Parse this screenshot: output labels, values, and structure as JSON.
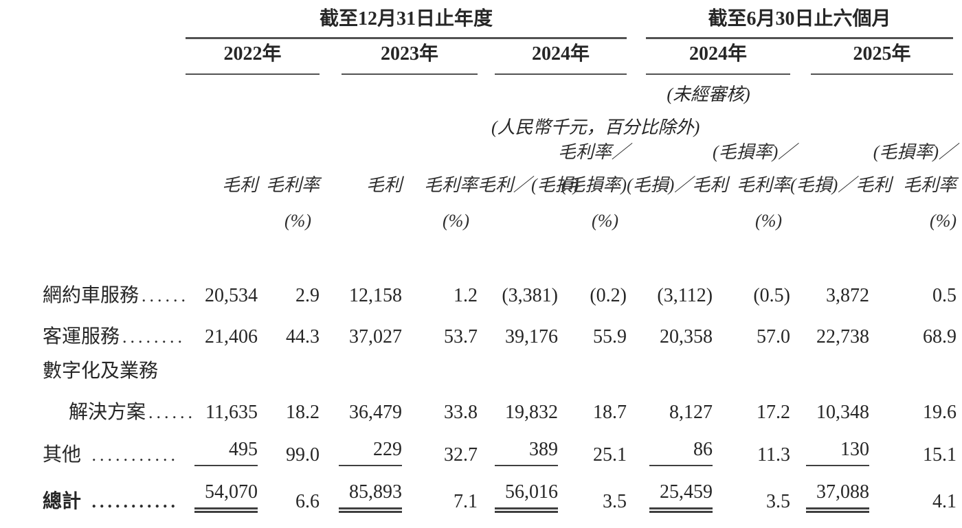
{
  "table": {
    "groups": [
      {
        "title": "截至12月31日止年度"
      },
      {
        "title": "截至6月30日止六個月"
      }
    ],
    "years": [
      {
        "label": "2022年"
      },
      {
        "label": "2023年"
      },
      {
        "label": "2024年"
      },
      {
        "label": "2024年"
      },
      {
        "label": "2025年"
      }
    ],
    "notes": {
      "unaudited": "(未經審核)",
      "unit": "(人民幣千元，百分比除外)"
    },
    "col_headers": {
      "line1_c6": "毛利率／",
      "line1_c8": "(毛損率)／",
      "line1_c10": "(毛損率)／",
      "line2": [
        "毛利",
        "毛利率",
        "毛利",
        "毛利率",
        "毛利／(毛損)",
        "(毛損率)",
        "(毛損)／毛利",
        "毛利率",
        "(毛損)／毛利",
        "毛利率"
      ],
      "pct": "(%)"
    },
    "rows": [
      {
        "label": "網約車服務",
        "leader": "......",
        "indent": false,
        "bold": false,
        "underline": "none",
        "values": [
          "20,534",
          "2.9",
          "12,158",
          "1.2",
          "(3,381)",
          "(0.2)",
          "(3,112)",
          "(0.5)",
          "3,872",
          "0.5"
        ]
      },
      {
        "label": "客運服務",
        "leader": "........",
        "indent": false,
        "bold": false,
        "underline": "none",
        "values": [
          "21,406",
          "44.3",
          "37,027",
          "53.7",
          "39,176",
          "55.9",
          "20,358",
          "57.0",
          "22,738",
          "68.9"
        ]
      },
      {
        "label": "數字化及業務",
        "leader": "",
        "indent": false,
        "bold": false,
        "underline": "none",
        "values": []
      },
      {
        "label": "解決方案",
        "leader": "......",
        "indent": true,
        "bold": false,
        "underline": "none",
        "values": [
          "11,635",
          "18.2",
          "36,479",
          "33.8",
          "19,832",
          "18.7",
          "8,127",
          "17.2",
          "10,348",
          "19.6"
        ]
      },
      {
        "label": "其他",
        "leader": " ...........",
        "indent": false,
        "bold": false,
        "underline": "single",
        "values": [
          "495",
          "99.0",
          "229",
          "32.7",
          "389",
          "25.1",
          "86",
          "11.3",
          "130",
          "15.1"
        ]
      },
      {
        "label": "總計",
        "leader": " ...........",
        "indent": false,
        "bold": true,
        "underline": "double",
        "total": true,
        "values": [
          "54,070",
          "6.6",
          "85,893",
          "7.1",
          "56,016",
          "3.5",
          "25,459",
          "3.5",
          "37,088",
          "4.1"
        ]
      }
    ]
  }
}
